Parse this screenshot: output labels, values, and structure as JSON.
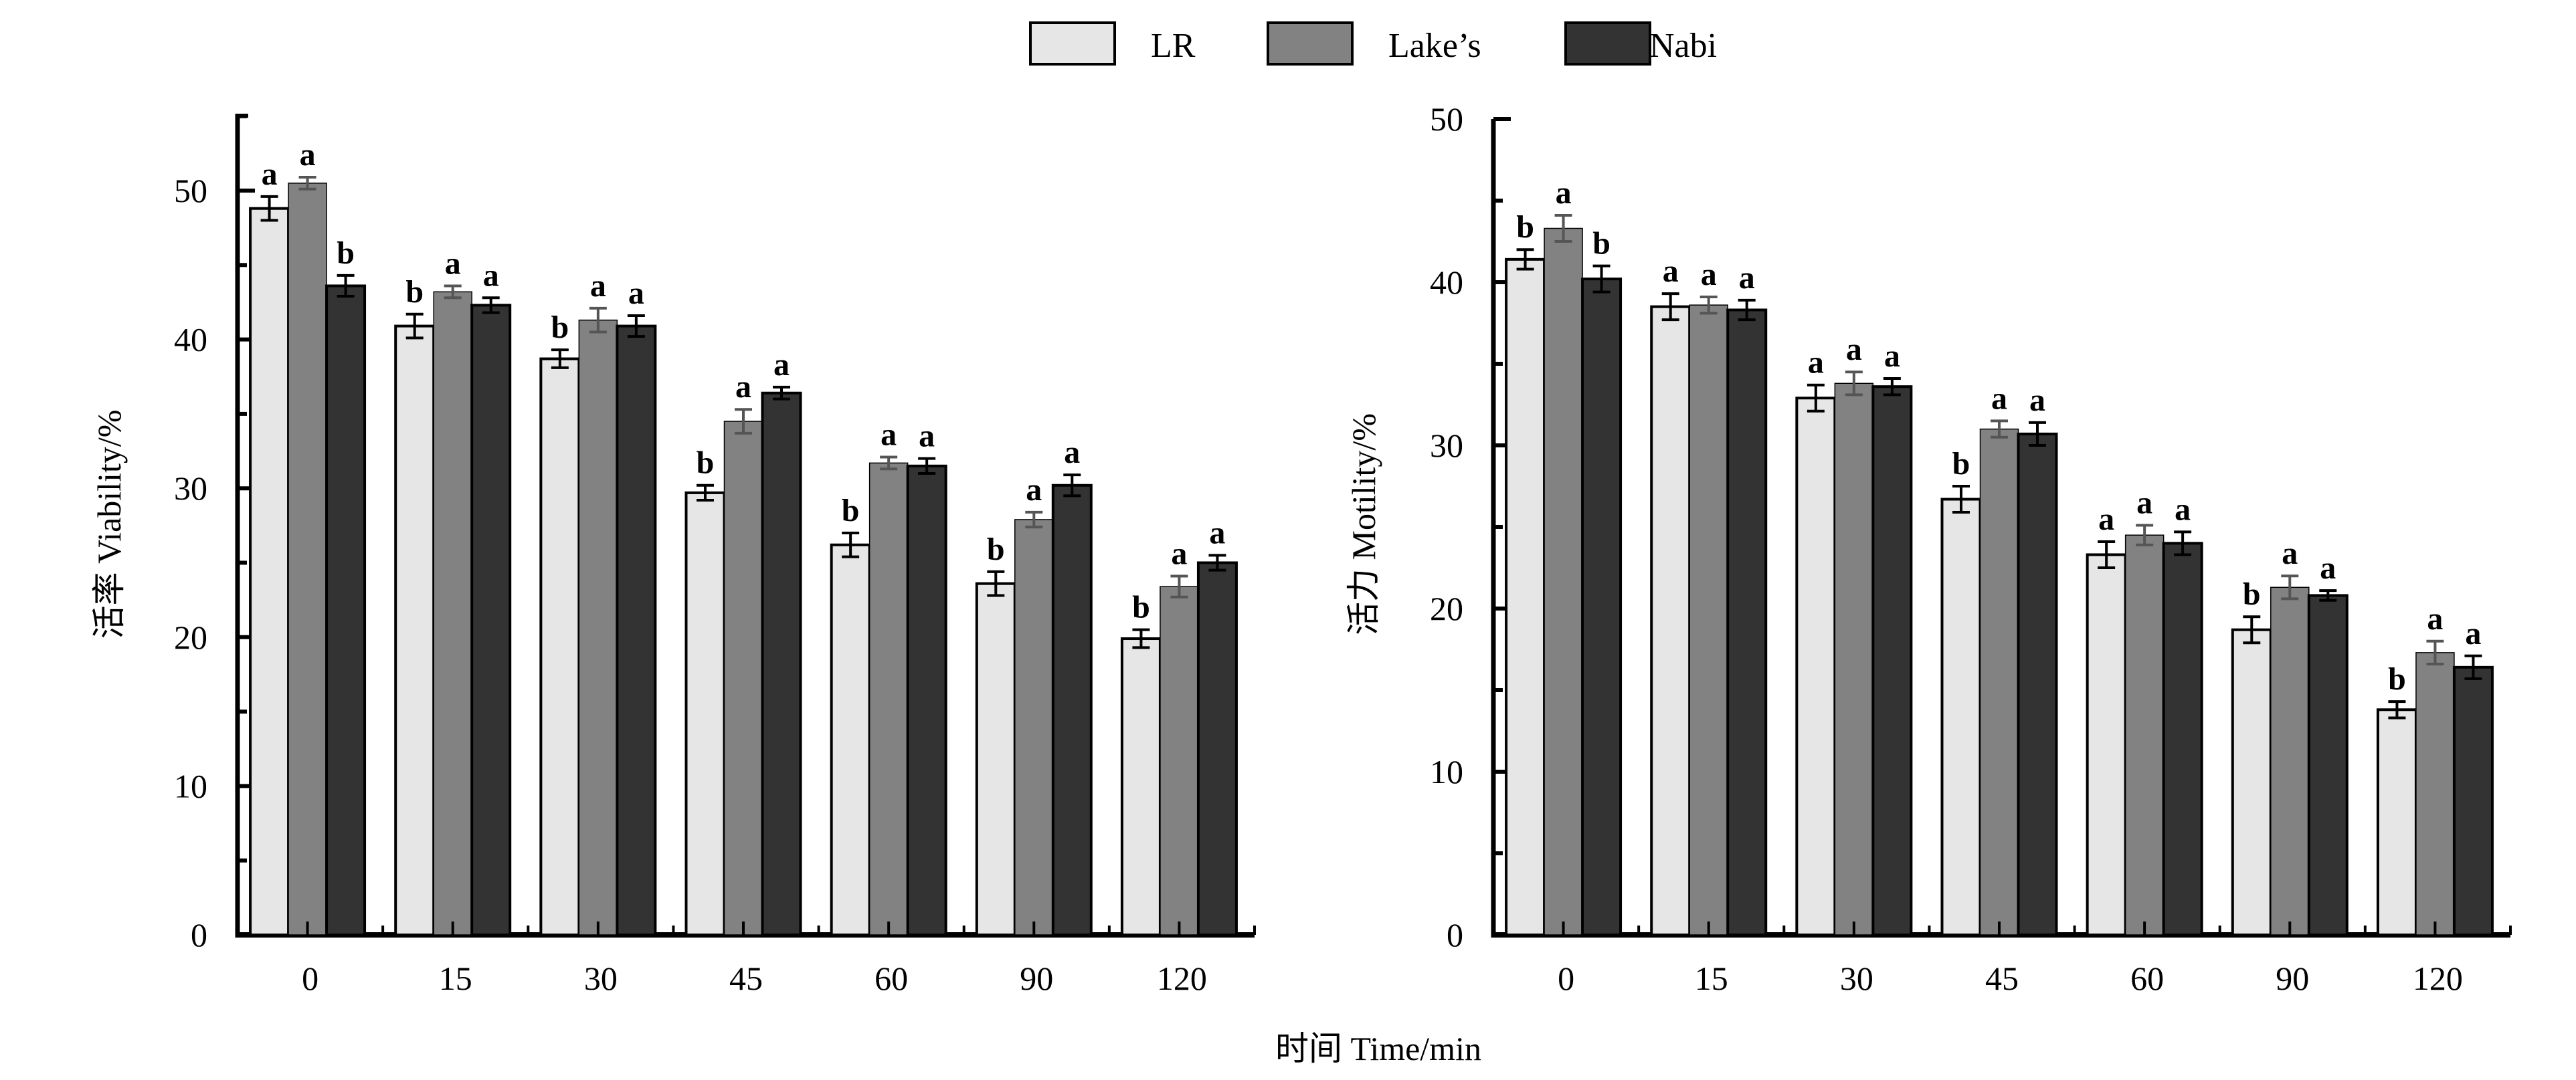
{
  "legend": [
    {
      "label": "LR",
      "color": "#e6e6e6"
    },
    {
      "label": "Lake’s",
      "color": "#828282"
    },
    {
      "label": "Nabi",
      "color": "#333333"
    }
  ],
  "shared_xlabel": "时间 Time/min",
  "chart_data": [
    {
      "type": "bar",
      "title": "",
      "xlabel": "时间 Time/min",
      "ylabel": "活率 Viability/%",
      "ylim": [
        0,
        55
      ],
      "yticks": [
        0,
        10,
        20,
        30,
        40,
        50
      ],
      "categories": [
        "0",
        "15",
        "30",
        "45",
        "60",
        "90",
        "120"
      ],
      "series": [
        {
          "name": "LR",
          "color": "#e6e6e6",
          "values": [
            48.8,
            40.9,
            38.7,
            29.7,
            26.2,
            23.6,
            19.9
          ],
          "errors": [
            0.8,
            0.8,
            0.6,
            0.5,
            0.8,
            0.8,
            0.6
          ],
          "labels": [
            "a",
            "b",
            "b",
            "b",
            "b",
            "b",
            "b"
          ]
        },
        {
          "name": "Lake’s",
          "color": "#828282",
          "values": [
            50.5,
            43.2,
            41.3,
            34.5,
            31.7,
            27.9,
            23.4
          ],
          "errors": [
            0.4,
            0.4,
            0.8,
            0.8,
            0.4,
            0.5,
            0.7
          ],
          "labels": [
            "a",
            "a",
            "a",
            "a",
            "a",
            "a",
            "a"
          ]
        },
        {
          "name": "Nabi",
          "color": "#333333",
          "values": [
            43.6,
            42.3,
            40.9,
            36.4,
            31.5,
            30.2,
            25.0
          ],
          "errors": [
            0.7,
            0.5,
            0.7,
            0.4,
            0.5,
            0.7,
            0.5
          ],
          "labels": [
            "b",
            "a",
            "a",
            "a",
            "a",
            "a",
            "a"
          ]
        }
      ]
    },
    {
      "type": "bar",
      "title": "",
      "xlabel": "时间 Time/min",
      "ylabel": "活力 Motility/%",
      "ylim": [
        0,
        50
      ],
      "yticks": [
        0,
        10,
        20,
        30,
        40,
        50
      ],
      "categories": [
        "0",
        "15",
        "30",
        "45",
        "60",
        "90",
        "120"
      ],
      "series": [
        {
          "name": "LR",
          "color": "#e6e6e6",
          "values": [
            41.4,
            38.5,
            32.9,
            26.7,
            23.3,
            18.7,
            13.8
          ],
          "errors": [
            0.6,
            0.8,
            0.8,
            0.8,
            0.8,
            0.8,
            0.5
          ],
          "labels": [
            "b",
            "a",
            "a",
            "b",
            "a",
            "b",
            "b"
          ]
        },
        {
          "name": "Lake’s",
          "color": "#828282",
          "values": [
            43.3,
            38.6,
            33.8,
            31.0,
            24.5,
            21.3,
            17.3
          ],
          "errors": [
            0.8,
            0.5,
            0.7,
            0.5,
            0.6,
            0.7,
            0.7
          ],
          "labels": [
            "a",
            "a",
            "a",
            "a",
            "a",
            "a",
            "a"
          ]
        },
        {
          "name": "Nabi",
          "color": "#333333",
          "values": [
            40.2,
            38.3,
            33.6,
            30.7,
            24.0,
            20.8,
            16.4
          ],
          "errors": [
            0.8,
            0.6,
            0.5,
            0.7,
            0.7,
            0.3,
            0.7
          ],
          "labels": [
            "b",
            "a",
            "a",
            "a",
            "a",
            "a",
            "a"
          ]
        }
      ]
    }
  ]
}
